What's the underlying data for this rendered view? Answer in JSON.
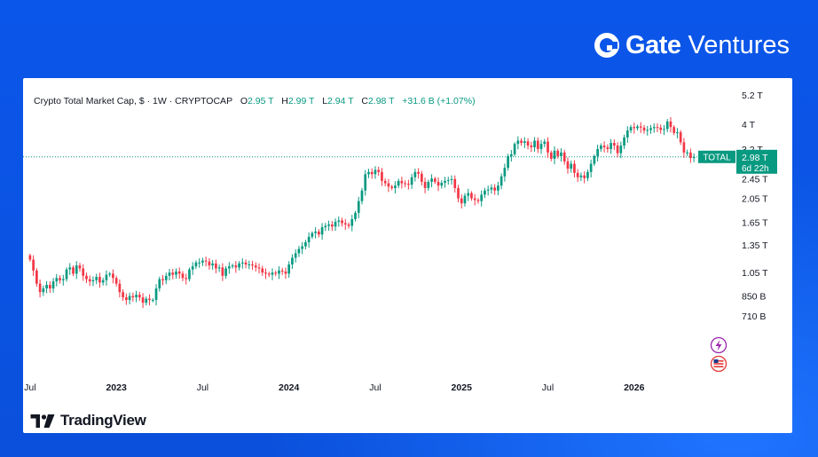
{
  "brand": {
    "name": "Gate",
    "sub": "Ventures",
    "logo_icon": "gate-logo-icon"
  },
  "footer": {
    "name": "TradingView",
    "logo_icon": "tradingview-logo-icon"
  },
  "legend": {
    "symbol": "Crypto Total Market Cap, $ · 1W · CRYPTOCAP",
    "o_label": "O",
    "o": "2.95 T",
    "h_label": "H",
    "h": "2.99 T",
    "l_label": "L",
    "l": "2.94 T",
    "c_label": "C",
    "c": "2.98 T",
    "change": "+31.6 B (+1.07%)"
  },
  "price_tag": {
    "label": "TOTAL",
    "value": "2.98 T",
    "countdown": "6d 22h",
    "value_t": 2.98
  },
  "chart_data": {
    "type": "candlestick",
    "title": "Crypto Total Market Cap, $ · 1W · CRYPTOCAP",
    "y_scale": "log",
    "y_unit": "T",
    "y_ticks": [
      {
        "label": "5.2 T",
        "v": 5.2
      },
      {
        "label": "4 T",
        "v": 4.0
      },
      {
        "label": "3.2 T",
        "v": 3.2
      },
      {
        "label": "2.45 T",
        "v": 2.45
      },
      {
        "label": "2.05 T",
        "v": 2.05
      },
      {
        "label": "1.65 T",
        "v": 1.65
      },
      {
        "label": "1.35 T",
        "v": 1.35
      },
      {
        "label": "1.05 T",
        "v": 1.05
      },
      {
        "label": "850 B",
        "v": 0.85
      },
      {
        "label": "710 B",
        "v": 0.71
      }
    ],
    "x_ticks": [
      {
        "label": "Jul",
        "t": 0,
        "bold": false
      },
      {
        "label": "2023",
        "t": 26,
        "bold": true
      },
      {
        "label": "Jul",
        "t": 52,
        "bold": false
      },
      {
        "label": "2024",
        "t": 78,
        "bold": true
      },
      {
        "label": "Jul",
        "t": 104,
        "bold": false
      },
      {
        "label": "2025",
        "t": 130,
        "bold": true
      },
      {
        "label": "Jul",
        "t": 156,
        "bold": false
      },
      {
        "label": "2026",
        "t": 182,
        "bold": true
      }
    ],
    "closes": [
      1.18,
      1.07,
      0.95,
      0.88,
      0.91,
      0.94,
      0.91,
      0.97,
      1.0,
      0.98,
      0.99,
      1.08,
      1.1,
      1.04,
      1.12,
      1.09,
      1.02,
      0.99,
      0.97,
      0.98,
      1.01,
      0.96,
      0.98,
      1.03,
      1.04,
      1.0,
      0.95,
      0.88,
      0.84,
      0.82,
      0.85,
      0.84,
      0.86,
      0.84,
      0.8,
      0.83,
      0.82,
      0.82,
      0.91,
      0.99,
      0.98,
      1.02,
      1.05,
      1.03,
      1.06,
      1.04,
      1.0,
      0.99,
      1.08,
      1.11,
      1.15,
      1.15,
      1.17,
      1.16,
      1.12,
      1.14,
      1.09,
      1.1,
      1.02,
      1.09,
      1.11,
      1.12,
      1.1,
      1.14,
      1.15,
      1.13,
      1.13,
      1.12,
      1.1,
      1.09,
      1.05,
      1.04,
      1.03,
      1.05,
      1.04,
      1.07,
      1.06,
      1.04,
      1.13,
      1.2,
      1.25,
      1.3,
      1.33,
      1.38,
      1.45,
      1.5,
      1.52,
      1.48,
      1.58,
      1.6,
      1.62,
      1.59,
      1.66,
      1.68,
      1.64,
      1.62,
      1.6,
      1.7,
      1.8,
      2.0,
      2.2,
      2.55,
      2.6,
      2.55,
      2.65,
      2.6,
      2.4,
      2.35,
      2.28,
      2.25,
      2.3,
      2.4,
      2.35,
      2.34,
      2.32,
      2.48,
      2.6,
      2.56,
      2.38,
      2.25,
      2.38,
      2.45,
      2.38,
      2.3,
      2.36,
      2.4,
      2.42,
      2.44,
      2.25,
      2.05,
      1.96,
      2.1,
      2.15,
      2.05,
      2.02,
      2.0,
      2.12,
      2.2,
      2.22,
      2.26,
      2.2,
      2.3,
      2.5,
      2.7,
      3.0,
      3.05,
      3.35,
      3.45,
      3.38,
      3.43,
      3.3,
      3.25,
      3.45,
      3.2,
      3.35,
      3.42,
      3.1,
      2.93,
      3.15,
      3.0,
      3.1,
      2.86,
      2.68,
      2.8,
      2.58,
      2.48,
      2.52,
      2.46,
      2.6,
      2.8,
      3.0,
      3.2,
      3.3,
      3.25,
      3.2,
      3.38,
      3.3,
      3.08,
      3.3,
      3.55,
      3.78,
      3.9,
      3.86,
      3.92,
      3.88,
      3.78,
      3.8,
      3.86,
      3.9,
      3.88,
      3.8,
      3.83,
      4.1,
      3.9,
      3.7,
      3.72,
      3.4,
      3.1,
      3.1,
      2.95,
      2.98
    ]
  }
}
